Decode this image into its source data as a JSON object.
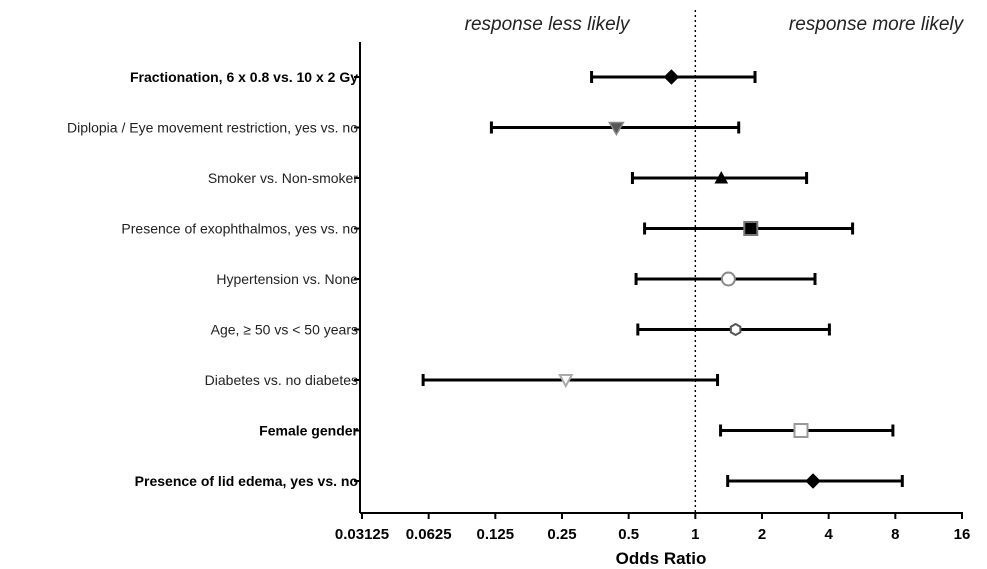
{
  "chart_data": {
    "type": "forest",
    "xlabel": "Odds Ratio",
    "x_scale": "log2",
    "xlim": [
      0.03125,
      16
    ],
    "x_ticks": [
      "0.03125",
      "0.0625",
      "0.125",
      "0.25",
      "0.5",
      "1",
      "2",
      "4",
      "8",
      "16"
    ],
    "x_tick_values": [
      0.03125,
      0.0625,
      0.125,
      0.25,
      0.5,
      1,
      2,
      4,
      8,
      16
    ],
    "reference_line": 1,
    "annotations": {
      "left": "response less likely",
      "right": "response more likely"
    },
    "rows": [
      {
        "label": "Fractionation, 6 x 0.8 vs. 10 x 2 Gy",
        "bold": true,
        "or": 0.78,
        "lo": 0.34,
        "hi": 1.86,
        "marker": "diamond-filled"
      },
      {
        "label": "Diplopia / Eye movement restriction, yes vs. no",
        "bold": false,
        "or": 0.44,
        "lo": 0.12,
        "hi": 1.57,
        "marker": "triangle-down-filled"
      },
      {
        "label": "Smoker vs. Non-smoker",
        "bold": false,
        "or": 1.31,
        "lo": 0.52,
        "hi": 3.18,
        "marker": "triangle-up-filled"
      },
      {
        "label": "Presence of exophthalmos, yes vs. no",
        "bold": false,
        "or": 1.78,
        "lo": 0.59,
        "hi": 5.13,
        "marker": "square-filled"
      },
      {
        "label": "Hypertension vs. None",
        "bold": false,
        "or": 1.41,
        "lo": 0.54,
        "hi": 3.47,
        "marker": "circle-open"
      },
      {
        "label": "Age, ≥ 50 vs < 50 years",
        "bold": false,
        "or": 1.52,
        "lo": 0.55,
        "hi": 4.03,
        "marker": "hexagon-open"
      },
      {
        "label": "Diabetes vs. no diabetes",
        "bold": false,
        "or": 0.26,
        "lo": 0.059,
        "hi": 1.26,
        "marker": "triangle-down-open"
      },
      {
        "label": "Female gender",
        "bold": true,
        "or": 3.0,
        "lo": 1.3,
        "hi": 7.8,
        "marker": "square-open"
      },
      {
        "label": "Presence of lid edema, yes vs. no",
        "bold": true,
        "or": 3.4,
        "lo": 1.4,
        "hi": 8.6,
        "marker": "diamond-filled"
      }
    ]
  }
}
